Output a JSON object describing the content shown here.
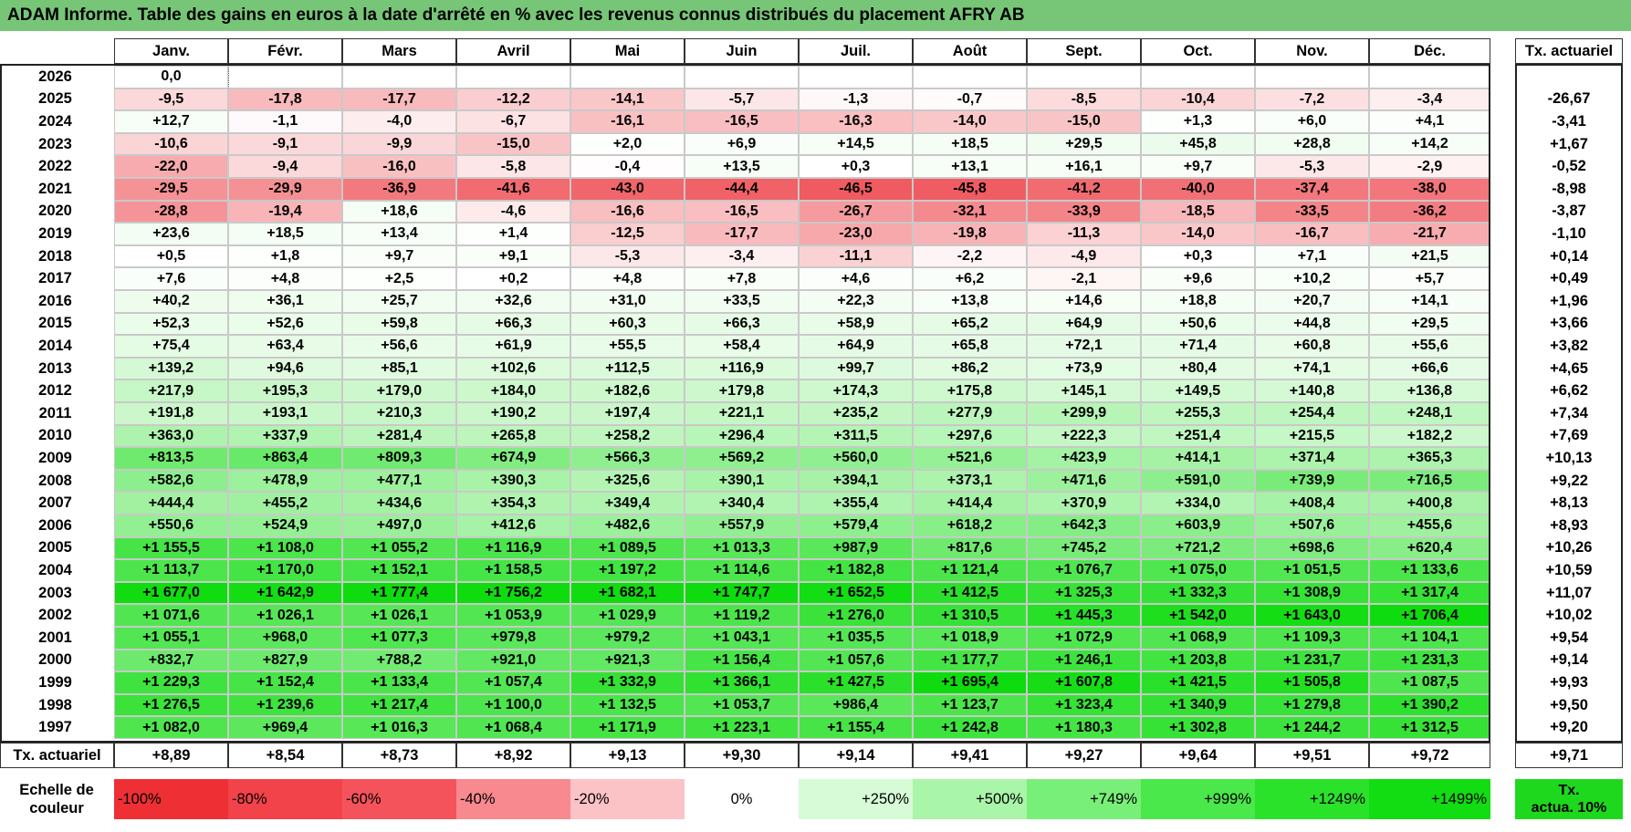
{
  "title": "ADAM Informe. Table des gains en euros à la date d'arrêté en % avec les revenus connus distribués du placement AFRY AB",
  "months": [
    "Janv.",
    "Févr.",
    "Mars",
    "Avril",
    "Mai",
    "Juin",
    "Juil.",
    "Août",
    "Sept.",
    "Oct.",
    "Nov.",
    "Déc."
  ],
  "tx_header": "Tx. actuariel",
  "rows": [
    {
      "year": "2026",
      "values": [
        "0,0",
        "",
        "",
        "",
        "",
        "",
        "",
        "",
        "",
        "",
        "",
        ""
      ],
      "tx": ""
    },
    {
      "year": "2025",
      "values": [
        "-9,5",
        "-17,8",
        "-17,7",
        "-12,2",
        "-14,1",
        "-5,7",
        "-1,3",
        "-0,7",
        "-8,5",
        "-10,4",
        "-7,2",
        "-3,4"
      ],
      "tx": "-26,67"
    },
    {
      "year": "2024",
      "values": [
        "+12,7",
        "-1,1",
        "-4,0",
        "-6,7",
        "-16,1",
        "-16,5",
        "-16,3",
        "-14,0",
        "-15,0",
        "+1,3",
        "+6,0",
        "+4,1"
      ],
      "tx": "-3,41"
    },
    {
      "year": "2023",
      "values": [
        "-10,6",
        "-9,1",
        "-9,9",
        "-15,0",
        "+2,0",
        "+6,9",
        "+14,5",
        "+18,5",
        "+29,5",
        "+45,8",
        "+28,8",
        "+14,2"
      ],
      "tx": "+1,67"
    },
    {
      "year": "2022",
      "values": [
        "-22,0",
        "-9,4",
        "-16,0",
        "-5,8",
        "-0,4",
        "+13,5",
        "+0,3",
        "+13,1",
        "+16,1",
        "+9,7",
        "-5,3",
        "-2,9"
      ],
      "tx": "-0,52"
    },
    {
      "year": "2021",
      "values": [
        "-29,5",
        "-29,9",
        "-36,9",
        "-41,6",
        "-43,0",
        "-44,4",
        "-46,5",
        "-45,8",
        "-41,2",
        "-40,0",
        "-37,4",
        "-38,0"
      ],
      "tx": "-8,98"
    },
    {
      "year": "2020",
      "values": [
        "-28,8",
        "-19,4",
        "+18,6",
        "-4,6",
        "-16,6",
        "-16,5",
        "-26,7",
        "-32,1",
        "-33,9",
        "-18,5",
        "-33,5",
        "-36,2"
      ],
      "tx": "-3,87"
    },
    {
      "year": "2019",
      "values": [
        "+23,6",
        "+18,5",
        "+13,4",
        "+1,4",
        "-12,5",
        "-17,7",
        "-23,0",
        "-19,8",
        "-11,3",
        "-14,0",
        "-16,7",
        "-21,7"
      ],
      "tx": "-1,10"
    },
    {
      "year": "2018",
      "values": [
        "+0,5",
        "+1,8",
        "+9,7",
        "+9,1",
        "-5,3",
        "-3,4",
        "-11,1",
        "-2,2",
        "-4,9",
        "+0,3",
        "+7,1",
        "+21,5"
      ],
      "tx": "+0,14"
    },
    {
      "year": "2017",
      "values": [
        "+7,6",
        "+4,8",
        "+2,5",
        "+0,2",
        "+4,8",
        "+7,8",
        "+4,6",
        "+6,2",
        "-2,1",
        "+9,6",
        "+10,2",
        "+5,7"
      ],
      "tx": "+0,49"
    },
    {
      "year": "2016",
      "values": [
        "+40,2",
        "+36,1",
        "+25,7",
        "+32,6",
        "+31,0",
        "+33,5",
        "+22,3",
        "+13,8",
        "+14,6",
        "+18,8",
        "+20,7",
        "+14,1"
      ],
      "tx": "+1,96"
    },
    {
      "year": "2015",
      "values": [
        "+52,3",
        "+52,6",
        "+59,8",
        "+66,3",
        "+60,3",
        "+66,3",
        "+58,9",
        "+65,2",
        "+64,9",
        "+50,6",
        "+44,8",
        "+29,5"
      ],
      "tx": "+3,66"
    },
    {
      "year": "2014",
      "values": [
        "+75,4",
        "+63,4",
        "+56,6",
        "+61,9",
        "+55,5",
        "+58,4",
        "+64,9",
        "+65,8",
        "+72,1",
        "+71,4",
        "+60,8",
        "+55,6"
      ],
      "tx": "+3,82"
    },
    {
      "year": "2013",
      "values": [
        "+139,2",
        "+94,6",
        "+85,1",
        "+102,6",
        "+112,5",
        "+116,9",
        "+99,7",
        "+86,2",
        "+73,9",
        "+80,4",
        "+74,1",
        "+66,6"
      ],
      "tx": "+4,65"
    },
    {
      "year": "2012",
      "values": [
        "+217,9",
        "+195,3",
        "+179,0",
        "+184,0",
        "+182,6",
        "+179,8",
        "+174,3",
        "+175,8",
        "+145,1",
        "+149,5",
        "+140,8",
        "+136,8"
      ],
      "tx": "+6,62"
    },
    {
      "year": "2011",
      "values": [
        "+191,8",
        "+193,1",
        "+210,3",
        "+190,2",
        "+197,4",
        "+221,1",
        "+235,2",
        "+277,9",
        "+299,9",
        "+255,3",
        "+254,4",
        "+248,1"
      ],
      "tx": "+7,34"
    },
    {
      "year": "2010",
      "values": [
        "+363,0",
        "+337,9",
        "+281,4",
        "+265,8",
        "+258,2",
        "+296,4",
        "+311,5",
        "+297,6",
        "+222,3",
        "+251,4",
        "+215,5",
        "+182,2"
      ],
      "tx": "+7,69"
    },
    {
      "year": "2009",
      "values": [
        "+813,5",
        "+863,4",
        "+809,3",
        "+674,9",
        "+566,3",
        "+569,2",
        "+560,0",
        "+521,6",
        "+423,9",
        "+414,1",
        "+371,4",
        "+365,3"
      ],
      "tx": "+10,13"
    },
    {
      "year": "2008",
      "values": [
        "+582,6",
        "+478,9",
        "+477,1",
        "+390,3",
        "+325,6",
        "+390,1",
        "+394,1",
        "+373,1",
        "+471,6",
        "+591,0",
        "+739,9",
        "+716,5"
      ],
      "tx": "+9,22"
    },
    {
      "year": "2007",
      "values": [
        "+444,4",
        "+455,2",
        "+434,6",
        "+354,3",
        "+349,4",
        "+340,4",
        "+355,4",
        "+414,4",
        "+370,9",
        "+334,0",
        "+408,4",
        "+400,8"
      ],
      "tx": "+8,13"
    },
    {
      "year": "2006",
      "values": [
        "+550,6",
        "+524,9",
        "+497,0",
        "+412,6",
        "+482,6",
        "+557,9",
        "+579,4",
        "+618,2",
        "+642,3",
        "+603,9",
        "+507,6",
        "+455,6"
      ],
      "tx": "+8,93"
    },
    {
      "year": "2005",
      "values": [
        "+1 155,5",
        "+1 108,0",
        "+1 055,2",
        "+1 116,9",
        "+1 089,5",
        "+1 013,3",
        "+987,9",
        "+817,6",
        "+745,2",
        "+721,2",
        "+698,6",
        "+620,4"
      ],
      "tx": "+10,26"
    },
    {
      "year": "2004",
      "values": [
        "+1 113,7",
        "+1 170,0",
        "+1 152,1",
        "+1 158,5",
        "+1 197,2",
        "+1 114,6",
        "+1 182,8",
        "+1 121,4",
        "+1 076,7",
        "+1 075,0",
        "+1 051,5",
        "+1 133,6"
      ],
      "tx": "+10,59"
    },
    {
      "year": "2003",
      "values": [
        "+1 677,0",
        "+1 642,9",
        "+1 777,4",
        "+1 756,2",
        "+1 682,1",
        "+1 747,7",
        "+1 652,5",
        "+1 412,5",
        "+1 325,3",
        "+1 332,3",
        "+1 308,9",
        "+1 317,4"
      ],
      "tx": "+11,07"
    },
    {
      "year": "2002",
      "values": [
        "+1 071,6",
        "+1 026,1",
        "+1 026,1",
        "+1 053,9",
        "+1 029,9",
        "+1 119,2",
        "+1 276,0",
        "+1 310,5",
        "+1 445,3",
        "+1 542,0",
        "+1 643,0",
        "+1 706,4"
      ],
      "tx": "+10,02"
    },
    {
      "year": "2001",
      "values": [
        "+1 055,1",
        "+968,0",
        "+1 077,3",
        "+979,8",
        "+979,2",
        "+1 043,1",
        "+1 035,5",
        "+1 018,9",
        "+1 072,9",
        "+1 068,9",
        "+1 109,3",
        "+1 104,1"
      ],
      "tx": "+9,54"
    },
    {
      "year": "2000",
      "values": [
        "+832,7",
        "+827,9",
        "+788,2",
        "+921,0",
        "+921,3",
        "+1 156,4",
        "+1 057,6",
        "+1 177,7",
        "+1 246,1",
        "+1 203,8",
        "+1 231,7",
        "+1 231,3"
      ],
      "tx": "+9,14"
    },
    {
      "year": "1999",
      "values": [
        "+1 229,3",
        "+1 152,4",
        "+1 133,4",
        "+1 057,4",
        "+1 332,9",
        "+1 366,1",
        "+1 427,5",
        "+1 695,4",
        "+1 607,8",
        "+1 421,5",
        "+1 505,8",
        "+1 087,5"
      ],
      "tx": "+9,93"
    },
    {
      "year": "1998",
      "values": [
        "+1 276,5",
        "+1 239,6",
        "+1 217,4",
        "+1 100,0",
        "+1 132,5",
        "+1 053,7",
        "+986,4",
        "+1 123,7",
        "+1 323,4",
        "+1 340,9",
        "+1 279,8",
        "+1 390,2"
      ],
      "tx": "+9,50"
    },
    {
      "year": "1997",
      "values": [
        "+1 082,0",
        "+969,4",
        "+1 016,3",
        "+1 068,4",
        "+1 171,9",
        "+1 223,1",
        "+1 155,4",
        "+1 242,8",
        "+1 180,3",
        "+1 302,8",
        "+1 244,2",
        "+1 312,5"
      ],
      "tx": "+9,20"
    }
  ],
  "footer": {
    "label": "Tx. actuariel",
    "values": [
      "+8,89",
      "+8,54",
      "+8,73",
      "+8,92",
      "+9,13",
      "+9,30",
      "+9,14",
      "+9,41",
      "+9,27",
      "+9,64",
      "+9,51",
      "+9,72"
    ],
    "tx": "+9,71"
  },
  "legend": {
    "label_line1": "Echelle de",
    "label_line2": "couleur",
    "items": [
      {
        "text": "-100%",
        "color": "#ee2f34",
        "align": "left"
      },
      {
        "text": "-80%",
        "color": "#f2424a",
        "align": "left"
      },
      {
        "text": "-60%",
        "color": "#f5535b",
        "align": "left"
      },
      {
        "text": "-40%",
        "color": "#f7898f",
        "align": "left"
      },
      {
        "text": "-20%",
        "color": "#fbc3c6",
        "align": "left"
      },
      {
        "text": "0%",
        "color": "#ffffff",
        "align": "center"
      },
      {
        "text": "+250%",
        "color": "#d6fbd6",
        "align": "right"
      },
      {
        "text": "+500%",
        "color": "#a9f5a9",
        "align": "right"
      },
      {
        "text": "+749%",
        "color": "#78ef78",
        "align": "right"
      },
      {
        "text": "+999%",
        "color": "#4ae84a",
        "align": "right"
      },
      {
        "text": "+1249%",
        "color": "#2be22b",
        "align": "right"
      },
      {
        "text": "+1499%",
        "color": "#12dc12",
        "align": "right"
      }
    ],
    "tx_line1": "Tx.",
    "tx_line2": "actua. 10%",
    "tx_color": "#1ed81e"
  }
}
